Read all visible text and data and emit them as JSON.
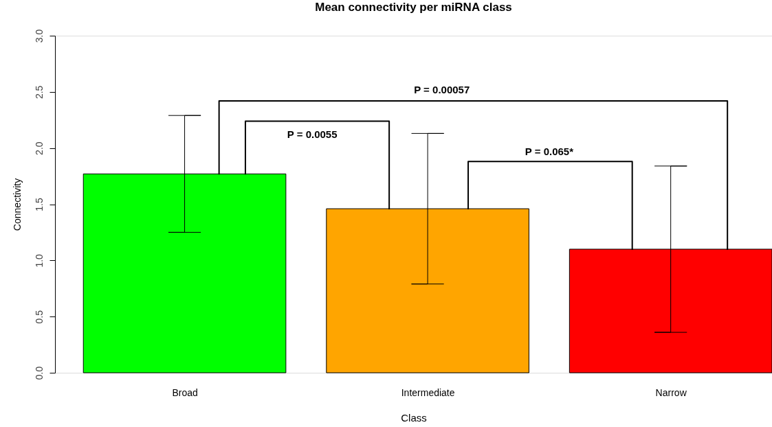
{
  "chart_data": {
    "type": "bar",
    "title": "Mean connectivity per miRNA class",
    "xlabel": "Class",
    "ylabel": "Connectivity",
    "categories": [
      "Broad",
      "Intermediate",
      "Narrow"
    ],
    "values": [
      1.77,
      1.46,
      1.1
    ],
    "colors": [
      "#00ff00",
      "#ffa500",
      "#ff0000"
    ],
    "errors": [
      0.52,
      0.67,
      0.74
    ],
    "ylim": [
      0,
      3
    ],
    "yticks": [
      {
        "value": 0,
        "label": "0.0"
      },
      {
        "value": 0.5,
        "label": "0.5"
      },
      {
        "value": 1,
        "label": "1.0"
      },
      {
        "value": 1.5,
        "label": "1.5"
      },
      {
        "value": 2,
        "label": "2.0"
      },
      {
        "value": 2.5,
        "label": "2.5"
      },
      {
        "value": 3,
        "label": "3.0"
      }
    ],
    "annotations": [
      "P = 0.0055",
      "P = 0.065*",
      "P = 0.00057"
    ],
    "grid": false
  }
}
